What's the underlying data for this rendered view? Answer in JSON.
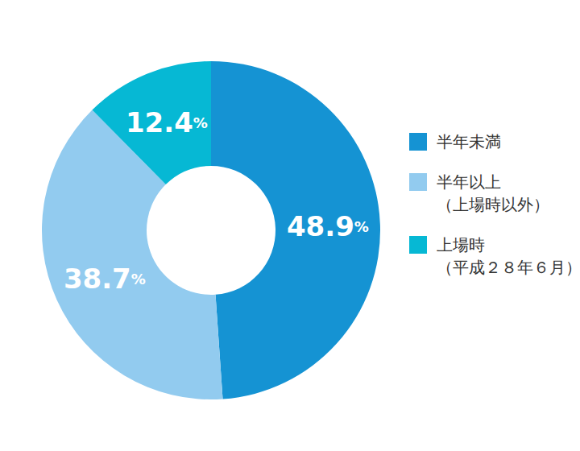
{
  "chart_data": {
    "type": "pie",
    "categories": [
      "半年未満",
      "半年以上（上場時以外）",
      "上場時（平成２８年６月）"
    ],
    "values": [
      48.9,
      38.7,
      12.4
    ],
    "value_labels": [
      "48.9%",
      "38.7%",
      "12.4%"
    ],
    "colors": [
      "#1593d3",
      "#92cbef",
      "#06b8d4"
    ],
    "data_labels": true,
    "legend": "right"
  }
}
